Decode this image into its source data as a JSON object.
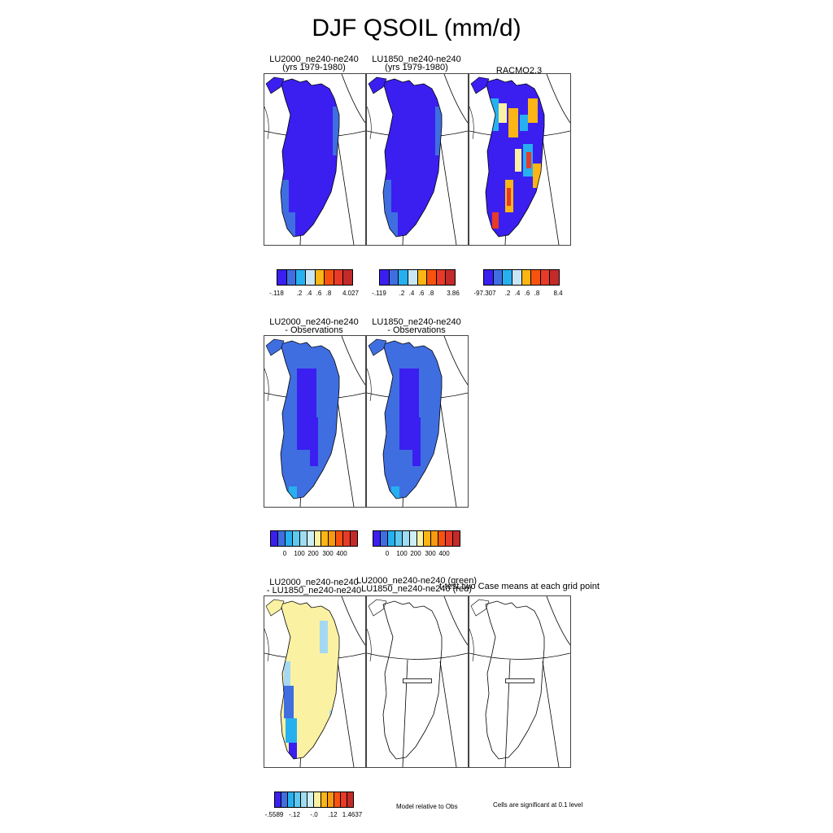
{
  "figure": {
    "title": "DJF QSOIL (mm/d)"
  },
  "row1": {
    "panel1_title": "LU2000_ne240-ne240",
    "panel1_subtitle": "(yrs 1979-1980)",
    "panel2_title": "LU1850_ne240-ne240",
    "panel2_subtitle": "(yrs 1979-1980)",
    "panel3_title": "RACMO2.3",
    "cbar1_ticks": [
      "-.118",
      ".2",
      ".4",
      ".6",
      ".8",
      "4.027"
    ],
    "cbar2_ticks": [
      "-.119",
      ".2",
      ".4",
      ".6",
      ".8",
      "3.86"
    ],
    "cbar3_ticks": [
      "-97.307",
      ".2",
      ".4",
      ".6",
      ".8",
      "8.4"
    ]
  },
  "row2": {
    "panel1_title": "LU2000_ne240-ne240",
    "panel1_subtitle": "- Observations",
    "panel2_title": "LU1850_ne240-ne240",
    "panel2_subtitle": "- Observations",
    "cbar_ticks": [
      "0",
      "100",
      "200",
      "300",
      "400"
    ]
  },
  "row3": {
    "panel1_title": "LU2000_ne240-ne240",
    "panel1_subtitle": "- LU1850_ne240-ne240",
    "panel2_title": "LU2000_ne240-ne240 (green)",
    "panel2_subtitle": "LU1850_ne240-ne240 (red)",
    "panel3_title": "t-test two Case means at each grid point",
    "cbar_ticks": [
      "-.5589",
      "-.12",
      "-.0",
      ".12",
      "1.4637"
    ],
    "note_model": "Model relative to Obs",
    "note_signif": "Cells are significant at 0.1 level"
  },
  "colors": {
    "seq8": [
      "#3a1ff0",
      "#3f6ee0",
      "#27b0f0",
      "#c8e6f5",
      "#fbb514",
      "#f7530f",
      "#e83a28",
      "#c32a2a"
    ],
    "div12": [
      "#3a1ff0",
      "#3f6ee0",
      "#27b0f0",
      "#5ec8ef",
      "#9fdcf2",
      "#cdeef5",
      "#fbf1a3",
      "#fbb514",
      "#f79a10",
      "#f7530f",
      "#e83a28",
      "#c32a2a"
    ],
    "main_blue": "#3a1ff0",
    "mid_blue": "#3f6ee0",
    "cyan": "#27b0f0",
    "light_blue": "#a5d8f2",
    "pale_yellow": "#fbf1a3",
    "orange": "#fbb514",
    "red": "#e83a28"
  }
}
